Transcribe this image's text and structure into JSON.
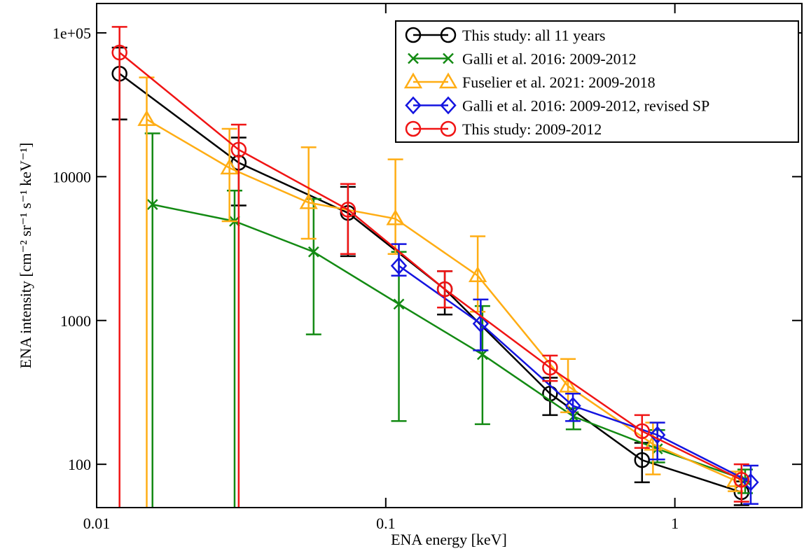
{
  "chart_data": {
    "type": "line",
    "x_label": "ENA energy [keV]",
    "y_label": "ENA intensity [cm⁻² sr⁻¹ s⁻¹ keV⁻¹]",
    "x_scale": "log",
    "y_scale": "log",
    "xlim": [
      0.01,
      2.75
    ],
    "ylim": [
      50,
      160000
    ],
    "xticks": [
      0.01,
      0.1,
      1
    ],
    "yticks": [
      100,
      1000,
      10000,
      {
        "value": 100000,
        "label": "1e+05"
      }
    ],
    "legend": "upper right",
    "series": [
      {
        "name": "This study: all 11 years",
        "color": "#000000",
        "marker": "circle",
        "x": [
          0.012,
          0.031,
          0.074,
          0.16,
          0.37,
          0.77,
          1.7
        ],
        "values": [
          52000,
          12500,
          5600,
          1650,
          310,
          107,
          64
        ],
        "err_minus": [
          27000,
          6200,
          2800,
          550,
          90,
          32,
          12
        ],
        "err_plus": [
          27000,
          6200,
          2900,
          550,
          90,
          34,
          12
        ]
      },
      {
        "name": "Galli et al. 2016: 2009-2012",
        "color": "#138a13",
        "marker": "x",
        "x": [
          0.0156,
          0.03,
          0.0563,
          0.111,
          0.216,
          0.446,
          0.87,
          1.75
        ],
        "values": [
          6400,
          4900,
          3000,
          1300,
          580,
          215,
          128,
          78
        ],
        "err_minus": [
          6400,
          4900,
          2200,
          1100,
          390,
          40,
          25,
          15
        ],
        "err_plus": [
          13600,
          3100,
          4000,
          1700,
          680,
          30,
          45,
          14
        ]
      },
      {
        "name": "Fuselier et al. 2021: 2009-2018",
        "color": "#ffad14",
        "marker": "triangle",
        "x": [
          0.0149,
          0.0288,
          0.0541,
          0.108,
          0.208,
          0.427,
          0.84,
          1.62
        ],
        "values": [
          25000,
          11500,
          6600,
          5100,
          2050,
          350,
          138,
          77
        ],
        "err_minus": [
          25000,
          6600,
          2900,
          2200,
          900,
          120,
          53,
          12
        ],
        "err_plus": [
          24000,
          10000,
          9400,
          8100,
          1800,
          190,
          57,
          12
        ]
      },
      {
        "name": "Galli et al. 2016: 2009-2012, revised SP",
        "color": "#1414e0",
        "marker": "diamond",
        "x": [
          0.111,
          0.213,
          0.444,
          0.87,
          1.83
        ],
        "values": [
          2400,
          950,
          255,
          160,
          75
        ],
        "err_minus": [
          350,
          330,
          55,
          52,
          22
        ],
        "err_plus": [
          1000,
          450,
          55,
          35,
          23
        ]
      },
      {
        "name": "This study: 2009-2012",
        "color": "#f01414",
        "marker": "circle",
        "x": [
          0.012,
          0.031,
          0.074,
          0.16,
          0.37,
          0.77,
          1.7
        ],
        "values": [
          73000,
          15400,
          5900,
          1650,
          470,
          170,
          78
        ],
        "err_minus": [
          73000,
          15400,
          3000,
          420,
          90,
          40,
          23
        ],
        "err_plus": [
          37000,
          7600,
          3000,
          550,
          100,
          50,
          22
        ]
      }
    ]
  }
}
